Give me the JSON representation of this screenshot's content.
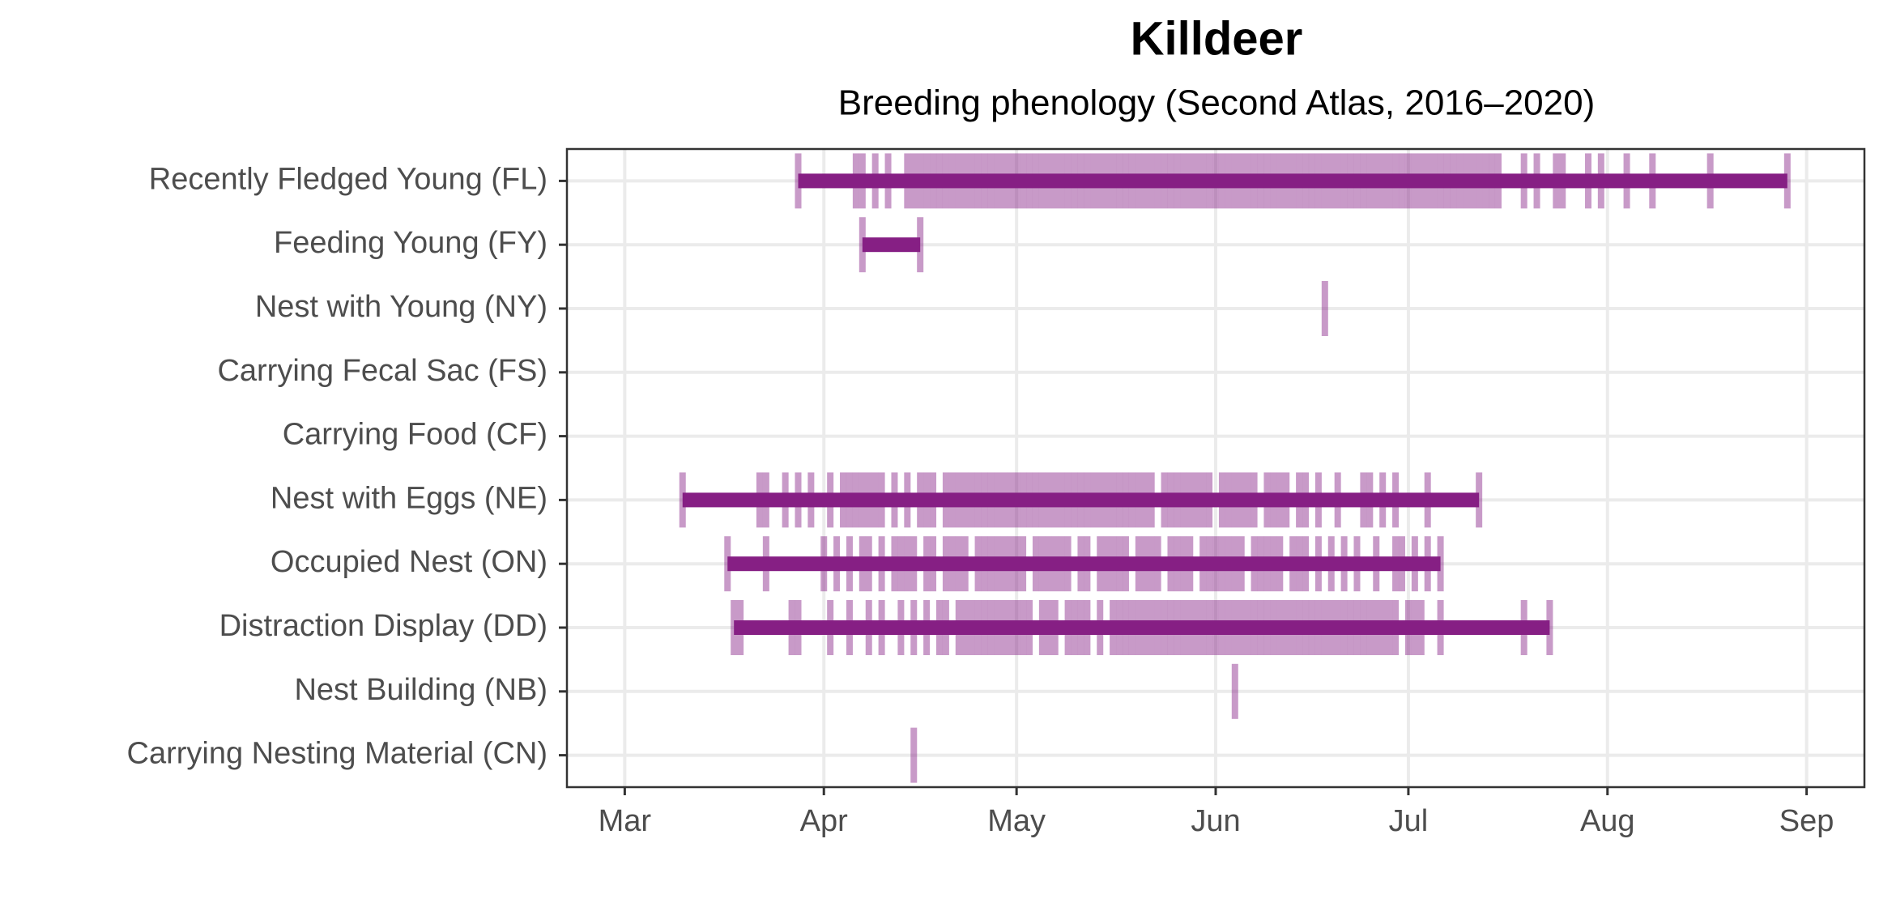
{
  "chart_data": {
    "type": "phenology",
    "title": "Killdeer",
    "subtitle": "Breeding phenology (Second Atlas, 2016–2020)",
    "color": "#861f84",
    "grid": true,
    "xlim": [
      51,
      253
    ],
    "xticks": [
      {
        "value": 60,
        "label": "Mar"
      },
      {
        "value": 91,
        "label": "Apr"
      },
      {
        "value": 121,
        "label": "May"
      },
      {
        "value": 152,
        "label": "Jun"
      },
      {
        "value": 182,
        "label": "Jul"
      },
      {
        "value": 213,
        "label": "Aug"
      },
      {
        "value": 244,
        "label": "Sep"
      }
    ],
    "series": [
      {
        "name": "Recently Fledged Young (FL)",
        "values": [
          87,
          96,
          97,
          99,
          101,
          104,
          105,
          106,
          107,
          108,
          109,
          110,
          111,
          112,
          113,
          114,
          115,
          116,
          117,
          118,
          119,
          120,
          121,
          122,
          123,
          124,
          125,
          126,
          127,
          128,
          129,
          130,
          131,
          132,
          133,
          134,
          135,
          136,
          137,
          138,
          139,
          140,
          141,
          142,
          143,
          144,
          145,
          146,
          147,
          148,
          149,
          150,
          151,
          152,
          153,
          154,
          155,
          156,
          157,
          158,
          159,
          160,
          161,
          162,
          163,
          164,
          165,
          166,
          167,
          168,
          169,
          170,
          171,
          172,
          173,
          174,
          175,
          176,
          177,
          178,
          179,
          180,
          181,
          182,
          183,
          184,
          185,
          186,
          187,
          188,
          189,
          190,
          191,
          192,
          193,
          194,
          195,
          196,
          200,
          202,
          205,
          206,
          210,
          212,
          216,
          220,
          229,
          241
        ]
      },
      {
        "name": "Feeding Young (FY)",
        "values": [
          97,
          106
        ]
      },
      {
        "name": "Nest with Young (NY)",
        "values": [
          169
        ]
      },
      {
        "name": "Carrying Fecal Sac (FS)",
        "values": []
      },
      {
        "name": "Carrying Food (CF)",
        "values": []
      },
      {
        "name": "Nest with Eggs (NE)",
        "values": [
          69,
          81,
          82,
          85,
          87,
          89,
          92,
          94,
          95,
          96,
          97,
          98,
          99,
          100,
          102,
          104,
          106,
          107,
          108,
          110,
          111,
          112,
          113,
          114,
          115,
          116,
          117,
          118,
          119,
          120,
          121,
          122,
          123,
          124,
          125,
          126,
          127,
          128,
          129,
          130,
          131,
          132,
          133,
          134,
          135,
          136,
          137,
          138,
          139,
          140,
          141,
          142,
          144,
          145,
          146,
          147,
          148,
          149,
          150,
          151,
          153,
          154,
          155,
          156,
          157,
          158,
          160,
          161,
          162,
          163,
          165,
          166,
          168,
          171,
          175,
          176,
          178,
          180,
          185,
          193
        ]
      },
      {
        "name": "Occupied Nest (ON)",
        "values": [
          76,
          82,
          91,
          93,
          95,
          97,
          98,
          100,
          102,
          103,
          104,
          105,
          107,
          108,
          110,
          111,
          112,
          113,
          115,
          116,
          117,
          118,
          119,
          120,
          121,
          122,
          124,
          125,
          126,
          127,
          128,
          129,
          131,
          132,
          134,
          135,
          136,
          137,
          138,
          140,
          141,
          142,
          143,
          145,
          146,
          147,
          148,
          150,
          151,
          152,
          153,
          154,
          155,
          156,
          158,
          159,
          160,
          161,
          162,
          164,
          165,
          166,
          168,
          170,
          172,
          174,
          177,
          180,
          181,
          183,
          185,
          187
        ]
      },
      {
        "name": "Distraction Display (DD)",
        "values": [
          77,
          78,
          86,
          87,
          92,
          95,
          98,
          100,
          103,
          105,
          107,
          109,
          110,
          112,
          113,
          114,
          115,
          116,
          117,
          118,
          119,
          120,
          121,
          122,
          123,
          125,
          126,
          127,
          129,
          130,
          131,
          132,
          134,
          136,
          137,
          138,
          139,
          140,
          141,
          142,
          143,
          144,
          145,
          146,
          147,
          148,
          149,
          150,
          151,
          152,
          153,
          154,
          155,
          156,
          157,
          158,
          159,
          160,
          161,
          162,
          163,
          164,
          165,
          166,
          167,
          168,
          169,
          170,
          171,
          172,
          173,
          174,
          175,
          176,
          177,
          178,
          179,
          180,
          182,
          183,
          184,
          187,
          200,
          204
        ]
      },
      {
        "name": "Nest Building (NB)",
        "values": [
          155
        ]
      },
      {
        "name": "Carrying Nesting Material (CN)",
        "values": [
          105
        ]
      }
    ]
  }
}
